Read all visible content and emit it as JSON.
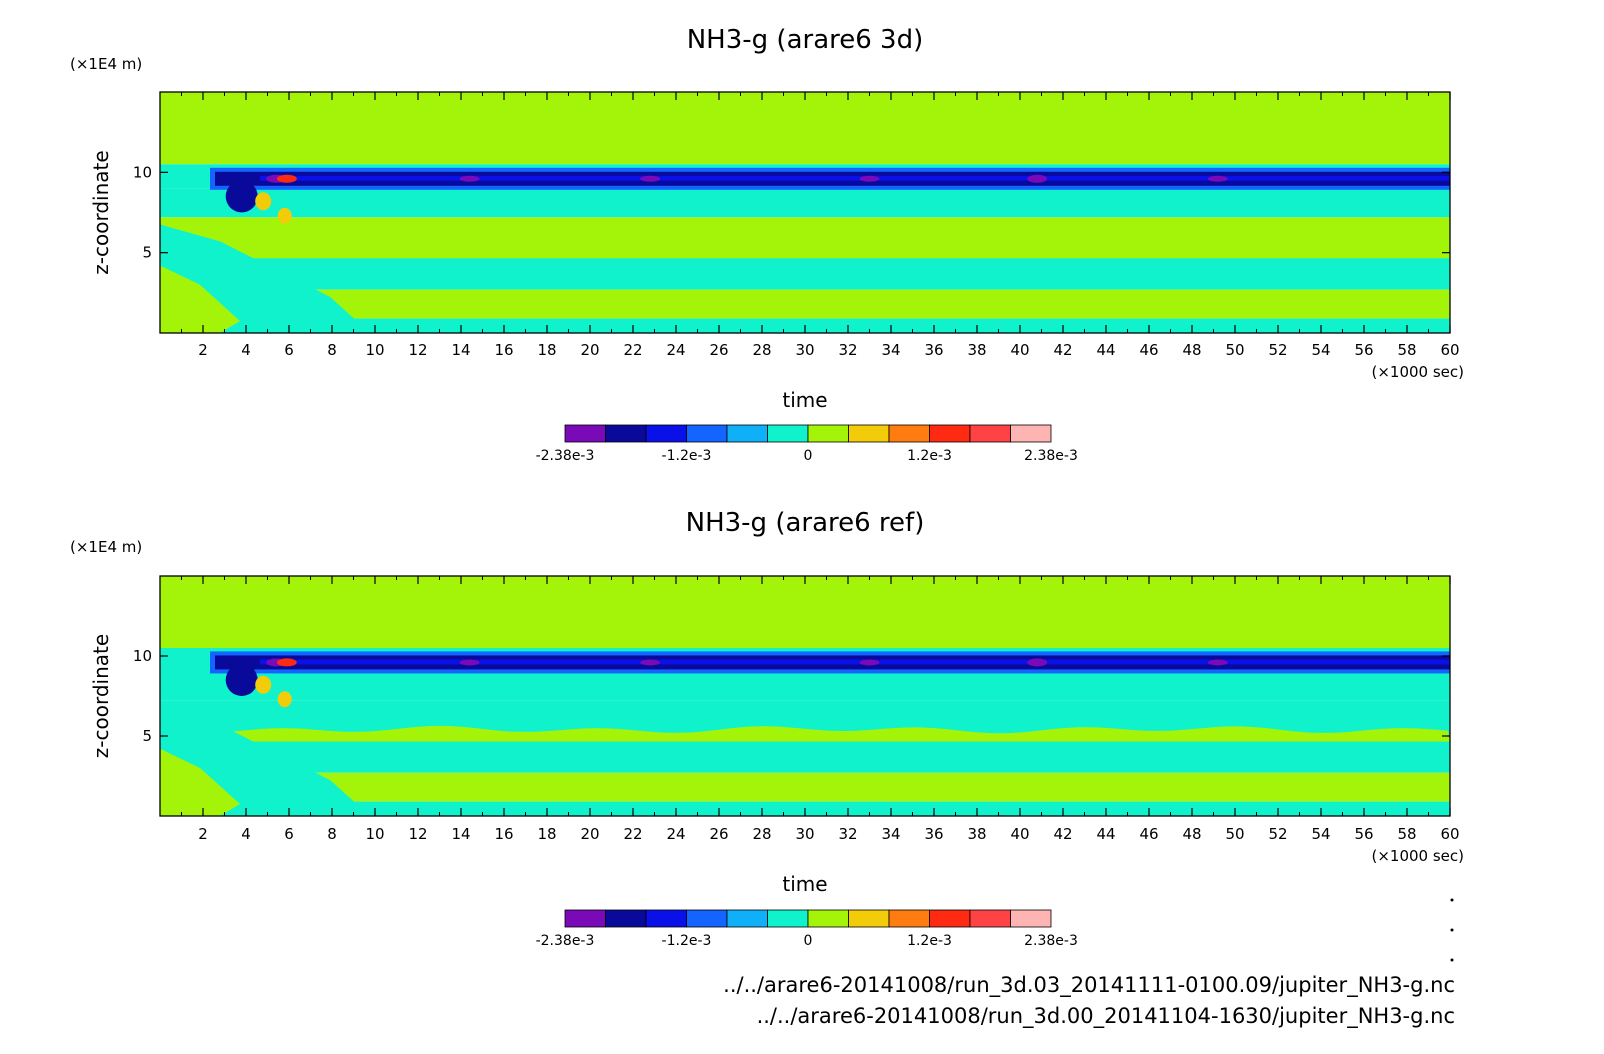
{
  "colors": {
    "scale": [
      "#7a0ab8",
      "#0a0a9a",
      "#0a10e8",
      "#1464ff",
      "#10b0f8",
      "#10f2cc",
      "#a4f40a",
      "#f2cc08",
      "#ff7d10",
      "#ff2a12",
      "#ff4244",
      "#ffb4b4"
    ],
    "frame": "#000000"
  },
  "chart_data": [
    {
      "type": "heatmap",
      "title": "NH3-g (arare6 3d)",
      "xlabel": "time",
      "ylabel": "z-coordinate",
      "x_unit": "(×1000 sec)",
      "y_unit": "(×1E4 m)",
      "xlim": [
        0,
        60
      ],
      "ylim": [
        0,
        15
      ],
      "x_ticks": [
        "2",
        "4",
        "6",
        "8",
        "10",
        "12",
        "14",
        "16",
        "18",
        "20",
        "22",
        "24",
        "26",
        "28",
        "30",
        "32",
        "34",
        "36",
        "38",
        "40",
        "42",
        "44",
        "46",
        "48",
        "50",
        "52",
        "54",
        "56",
        "58",
        "60"
      ],
      "y_ticks": [
        "5",
        "10"
      ],
      "colorbar_labels": [
        "-2.38e-3",
        "-1.2e-3",
        "0",
        "1.2e-3",
        "2.38e-3"
      ],
      "colorbar_range": [
        -0.00238,
        0.00238
      ]
    },
    {
      "type": "heatmap",
      "title": "NH3-g (arare6 ref)",
      "xlabel": "time",
      "ylabel": "z-coordinate",
      "x_unit": "(×1000 sec)",
      "y_unit": "(×1E4 m)",
      "xlim": [
        0,
        60
      ],
      "ylim": [
        0,
        15
      ],
      "x_ticks": [
        "2",
        "4",
        "6",
        "8",
        "10",
        "12",
        "14",
        "16",
        "18",
        "20",
        "22",
        "24",
        "26",
        "28",
        "30",
        "32",
        "34",
        "36",
        "38",
        "40",
        "42",
        "44",
        "46",
        "48",
        "50",
        "52",
        "54",
        "56",
        "58",
        "60"
      ],
      "y_ticks": [
        "5",
        "10"
      ],
      "colorbar_labels": [
        "-2.38e-3",
        "-1.2e-3",
        "0",
        "1.2e-3",
        "2.38e-3"
      ],
      "colorbar_range": [
        -0.00238,
        0.00238
      ]
    }
  ],
  "footer": {
    "file_paths": [
      "../../arare6-20141008/run_3d.03_20141111-0100.09/jupiter_NH3-g.nc",
      "../../arare6-20141008/run_3d.00_20141104-1630/jupiter_NH3-g.nc"
    ]
  }
}
